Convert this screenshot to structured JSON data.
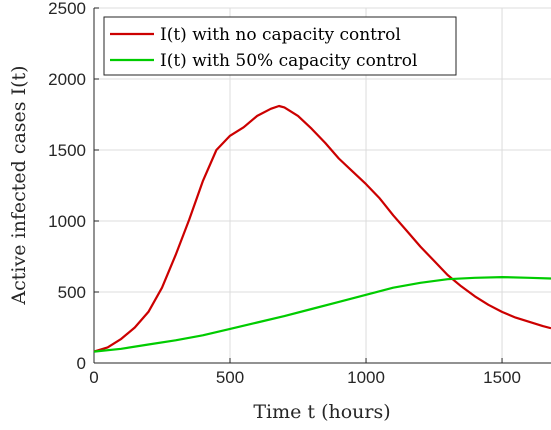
{
  "chart_data": {
    "type": "line",
    "xlabel": "Time t (hours)",
    "ylabel": "Active infected cases I(t)",
    "xlim": [
      0,
      1680
    ],
    "ylim": [
      0,
      2500
    ],
    "xticks": [
      0,
      500,
      1000,
      1500
    ],
    "yticks": [
      0,
      500,
      1000,
      1500,
      2000,
      2500
    ],
    "grid": true,
    "legend_position": "top-left",
    "series": [
      {
        "name": "I(t) with no capacity control",
        "color": "#cc0000",
        "x": [
          0,
          50,
          100,
          150,
          200,
          250,
          300,
          350,
          400,
          450,
          500,
          550,
          600,
          650,
          680,
          700,
          750,
          800,
          850,
          900,
          950,
          1000,
          1050,
          1100,
          1150,
          1200,
          1250,
          1300,
          1350,
          1400,
          1450,
          1500,
          1550,
          1600,
          1650,
          1680
        ],
        "y": [
          80,
          110,
          170,
          250,
          360,
          530,
          760,
          1010,
          1280,
          1500,
          1600,
          1660,
          1740,
          1790,
          1810,
          1800,
          1740,
          1650,
          1550,
          1440,
          1350,
          1260,
          1160,
          1040,
          930,
          820,
          720,
          620,
          540,
          470,
          410,
          360,
          320,
          290,
          260,
          245
        ]
      },
      {
        "name": "I(t) with 50% capacity control",
        "color": "#00cc00",
        "x": [
          0,
          100,
          200,
          300,
          400,
          500,
          600,
          700,
          800,
          900,
          1000,
          1100,
          1200,
          1300,
          1400,
          1500,
          1600,
          1680
        ],
        "y": [
          80,
          100,
          130,
          160,
          195,
          240,
          285,
          330,
          380,
          430,
          480,
          530,
          565,
          590,
          600,
          605,
          600,
          595
        ]
      }
    ]
  }
}
